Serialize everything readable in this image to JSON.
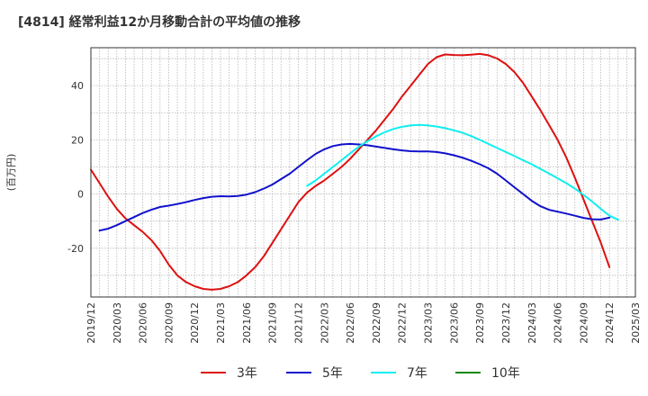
{
  "chart_data": {
    "type": "line",
    "title": "[4814]  経常利益12か月移動合計の平均値の推移",
    "ylabel": "(百万円)",
    "xlabel": "",
    "ylim": [
      -38,
      54
    ],
    "yticks": [
      -20,
      0,
      20,
      40
    ],
    "x_tick_labels": [
      "2019/12",
      "2020/03",
      "2020/06",
      "2020/09",
      "2020/12",
      "2021/03",
      "2021/06",
      "2021/09",
      "2021/12",
      "2022/03",
      "2022/06",
      "2022/09",
      "2022/12",
      "2023/03",
      "2023/06",
      "2023/09",
      "2023/12",
      "2024/03",
      "2024/06",
      "2024/09",
      "2024/12",
      "2025/03"
    ],
    "grid": true,
    "legend_position": "bottom",
    "series": [
      {
        "name": "3年",
        "color": "#dd1111",
        "points": [
          [
            "2019/12",
            9
          ],
          [
            "2020/01",
            4
          ],
          [
            "2020/02",
            -1
          ],
          [
            "2020/03",
            -5.5
          ],
          [
            "2020/04",
            -9
          ],
          [
            "2020/05",
            -11.5
          ],
          [
            "2020/06",
            -14
          ],
          [
            "2020/07",
            -17
          ],
          [
            "2020/08",
            -21
          ],
          [
            "2020/09",
            -26
          ],
          [
            "2020/10",
            -30
          ],
          [
            "2020/11",
            -32.5
          ],
          [
            "2020/12",
            -34
          ],
          [
            "2021/01",
            -35
          ],
          [
            "2021/02",
            -35.3
          ],
          [
            "2021/03",
            -35
          ],
          [
            "2021/04",
            -34
          ],
          [
            "2021/05",
            -32.5
          ],
          [
            "2021/06",
            -30
          ],
          [
            "2021/07",
            -27
          ],
          [
            "2021/08",
            -23
          ],
          [
            "2021/09",
            -18
          ],
          [
            "2021/10",
            -13
          ],
          [
            "2021/11",
            -8
          ],
          [
            "2021/12",
            -3
          ],
          [
            "2022/01",
            0.5
          ],
          [
            "2022/02",
            3
          ],
          [
            "2022/03",
            5
          ],
          [
            "2022/04",
            7.5
          ],
          [
            "2022/05",
            10
          ],
          [
            "2022/06",
            13
          ],
          [
            "2022/07",
            16.5
          ],
          [
            "2022/08",
            20
          ],
          [
            "2022/09",
            23.5
          ],
          [
            "2022/10",
            27.5
          ],
          [
            "2022/11",
            31.5
          ],
          [
            "2022/12",
            36
          ],
          [
            "2023/01",
            40
          ],
          [
            "2023/02",
            44
          ],
          [
            "2023/03",
            48
          ],
          [
            "2023/04",
            50.5
          ],
          [
            "2023/05",
            51.5
          ],
          [
            "2023/06",
            51.3
          ],
          [
            "2023/07",
            51.2
          ],
          [
            "2023/08",
            51.4
          ],
          [
            "2023/09",
            51.7
          ],
          [
            "2023/10",
            51.2
          ],
          [
            "2023/11",
            50
          ],
          [
            "2023/12",
            48
          ],
          [
            "2024/01",
            45
          ],
          [
            "2024/02",
            41
          ],
          [
            "2024/03",
            36
          ],
          [
            "2024/04",
            31
          ],
          [
            "2024/05",
            25.5
          ],
          [
            "2024/06",
            20
          ],
          [
            "2024/07",
            13.5
          ],
          [
            "2024/08",
            6
          ],
          [
            "2024/09",
            -2
          ],
          [
            "2024/10",
            -10
          ],
          [
            "2024/11",
            -18
          ],
          [
            "2024/12",
            -27
          ]
        ]
      },
      {
        "name": "5年",
        "color": "#1111cc",
        "points": [
          [
            "2020/01",
            -13.5
          ],
          [
            "2020/02",
            -12.8
          ],
          [
            "2020/03",
            -11.5
          ],
          [
            "2020/04",
            -10
          ],
          [
            "2020/05",
            -8.5
          ],
          [
            "2020/06",
            -7
          ],
          [
            "2020/07",
            -5.8
          ],
          [
            "2020/08",
            -4.8
          ],
          [
            "2020/09",
            -4.3
          ],
          [
            "2020/10",
            -3.7
          ],
          [
            "2020/11",
            -3
          ],
          [
            "2020/12",
            -2.2
          ],
          [
            "2021/01",
            -1.5
          ],
          [
            "2021/02",
            -1
          ],
          [
            "2021/03",
            -0.8
          ],
          [
            "2021/04",
            -0.9
          ],
          [
            "2021/05",
            -0.7
          ],
          [
            "2021/06",
            -0.2
          ],
          [
            "2021/07",
            0.7
          ],
          [
            "2021/08",
            2
          ],
          [
            "2021/09",
            3.5
          ],
          [
            "2021/10",
            5.5
          ],
          [
            "2021/11",
            7.5
          ],
          [
            "2021/12",
            10
          ],
          [
            "2022/01",
            12.5
          ],
          [
            "2022/02",
            14.8
          ],
          [
            "2022/03",
            16.5
          ],
          [
            "2022/04",
            17.7
          ],
          [
            "2022/05",
            18.3
          ],
          [
            "2022/06",
            18.5
          ],
          [
            "2022/07",
            18.3
          ],
          [
            "2022/08",
            18
          ],
          [
            "2022/09",
            17.5
          ],
          [
            "2022/10",
            17
          ],
          [
            "2022/11",
            16.5
          ],
          [
            "2022/12",
            16.1
          ],
          [
            "2023/01",
            15.8
          ],
          [
            "2023/02",
            15.7
          ],
          [
            "2023/03",
            15.7
          ],
          [
            "2023/04",
            15.5
          ],
          [
            "2023/05",
            15
          ],
          [
            "2023/06",
            14.3
          ],
          [
            "2023/07",
            13.4
          ],
          [
            "2023/08",
            12.3
          ],
          [
            "2023/09",
            11
          ],
          [
            "2023/10",
            9.5
          ],
          [
            "2023/11",
            7.5
          ],
          [
            "2023/12",
            5
          ],
          [
            "2024/01",
            2.5
          ],
          [
            "2024/02",
            0
          ],
          [
            "2024/03",
            -2.5
          ],
          [
            "2024/04",
            -4.5
          ],
          [
            "2024/05",
            -5.8
          ],
          [
            "2024/06",
            -6.5
          ],
          [
            "2024/07",
            -7.2
          ],
          [
            "2024/08",
            -8
          ],
          [
            "2024/09",
            -8.8
          ],
          [
            "2024/10",
            -9.3
          ],
          [
            "2024/11",
            -9.4
          ],
          [
            "2024/12",
            -8.7
          ]
        ]
      },
      {
        "name": "7年",
        "color": "#11eeee",
        "points": [
          [
            "2022/01",
            3
          ],
          [
            "2022/02",
            5
          ],
          [
            "2022/03",
            7.5
          ],
          [
            "2022/04",
            10
          ],
          [
            "2022/05",
            12.5
          ],
          [
            "2022/06",
            15
          ],
          [
            "2022/07",
            17.5
          ],
          [
            "2022/08",
            19.5
          ],
          [
            "2022/09",
            21.3
          ],
          [
            "2022/10",
            22.8
          ],
          [
            "2022/11",
            24
          ],
          [
            "2022/12",
            24.8
          ],
          [
            "2023/01",
            25.3
          ],
          [
            "2023/02",
            25.5
          ],
          [
            "2023/03",
            25.3
          ],
          [
            "2023/04",
            24.9
          ],
          [
            "2023/05",
            24.3
          ],
          [
            "2023/06",
            23.5
          ],
          [
            "2023/07",
            22.6
          ],
          [
            "2023/08",
            21.4
          ],
          [
            "2023/09",
            20
          ],
          [
            "2023/10",
            18.5
          ],
          [
            "2023/11",
            17
          ],
          [
            "2023/12",
            15.5
          ],
          [
            "2024/01",
            14
          ],
          [
            "2024/02",
            12.5
          ],
          [
            "2024/03",
            11
          ],
          [
            "2024/04",
            9.3
          ],
          [
            "2024/05",
            7.6
          ],
          [
            "2024/06",
            5.8
          ],
          [
            "2024/07",
            4
          ],
          [
            "2024/08",
            2
          ],
          [
            "2024/09",
            -0.3
          ],
          [
            "2024/10",
            -2.8
          ],
          [
            "2024/11",
            -5.5
          ],
          [
            "2024/12",
            -8
          ],
          [
            "2025/01",
            -9.5
          ]
        ]
      },
      {
        "name": "10年",
        "color": "#118811",
        "points": []
      }
    ]
  }
}
